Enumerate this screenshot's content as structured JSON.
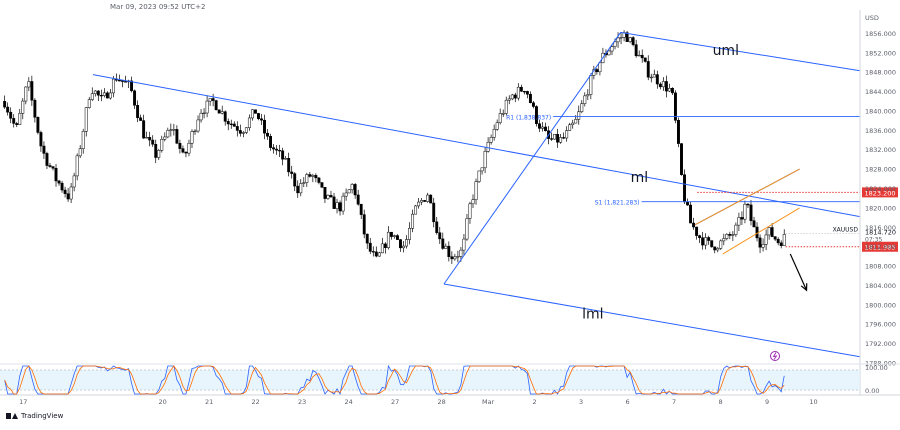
{
  "header": {
    "datetime": "Mar 09, 2023 09:52 UTC+2"
  },
  "brand": {
    "name": "TradingView"
  },
  "chart_data": {
    "type": "candlestick",
    "symbol": "XAUUSD",
    "currency": "USD",
    "last_price": "1814.720",
    "countdown": "07:35",
    "ylim": [
      1788,
      1860
    ],
    "y_ticks": [
      "1788.000",
      "1792.000",
      "1796.000",
      "1800.000",
      "1804.000",
      "1808.000",
      "1812.000",
      "1816.000",
      "1820.000",
      "1824.000",
      "1828.000",
      "1832.000",
      "1836.000",
      "1840.000",
      "1844.000",
      "1848.000",
      "1852.000",
      "1856.000"
    ],
    "x_ticks": [
      "17",
      "20",
      "21",
      "22",
      "23",
      "24",
      "27",
      "28",
      "Mar",
      "2",
      "3",
      "6",
      "7",
      "8",
      "9",
      "10"
    ],
    "x_tick_pos": [
      0.5,
      3.5,
      4.5,
      5.5,
      6.5,
      7.5,
      8.5,
      9.5,
      10.5,
      11.5,
      12.5,
      13.5,
      14.5,
      15.5,
      16.5,
      17.5
    ],
    "x_range": [
      0,
      18.5
    ],
    "price_path": [
      [
        0.1,
        1842
      ],
      [
        0.35,
        1836
      ],
      [
        0.6,
        1846
      ],
      [
        0.9,
        1832
      ],
      [
        1.2,
        1826
      ],
      [
        1.5,
        1822
      ],
      [
        1.75,
        1834
      ],
      [
        1.95,
        1845
      ],
      [
        2.2,
        1842
      ],
      [
        2.5,
        1847
      ],
      [
        2.8,
        1845
      ],
      [
        3.1,
        1835
      ],
      [
        3.35,
        1831
      ],
      [
        3.7,
        1837
      ],
      [
        3.95,
        1830
      ],
      [
        4.3,
        1840
      ],
      [
        4.6,
        1842
      ],
      [
        4.9,
        1838
      ],
      [
        5.2,
        1836
      ],
      [
        5.5,
        1840
      ],
      [
        5.8,
        1833
      ],
      [
        6.1,
        1830
      ],
      [
        6.4,
        1824
      ],
      [
        6.7,
        1827
      ],
      [
        7.0,
        1822
      ],
      [
        7.3,
        1820
      ],
      [
        7.6,
        1825
      ],
      [
        7.9,
        1812
      ],
      [
        8.1,
        1809
      ],
      [
        8.4,
        1815
      ],
      [
        8.7,
        1812
      ],
      [
        8.95,
        1820
      ],
      [
        9.2,
        1823
      ],
      [
        9.45,
        1814
      ],
      [
        9.7,
        1810
      ],
      [
        9.95,
        1811
      ],
      [
        10.1,
        1820
      ],
      [
        10.4,
        1830
      ],
      [
        10.7,
        1838
      ],
      [
        11.0,
        1843
      ],
      [
        11.3,
        1845
      ],
      [
        11.55,
        1838
      ],
      [
        11.8,
        1834
      ],
      [
        12.1,
        1834
      ],
      [
        12.4,
        1838
      ],
      [
        12.7,
        1846
      ],
      [
        12.95,
        1851
      ],
      [
        13.2,
        1854
      ],
      [
        13.45,
        1856
      ],
      [
        13.7,
        1852
      ],
      [
        13.95,
        1848
      ],
      [
        14.2,
        1846
      ],
      [
        14.45,
        1844
      ],
      [
        14.55,
        1836
      ],
      [
        14.7,
        1823
      ],
      [
        14.85,
        1817
      ],
      [
        15.05,
        1814
      ],
      [
        15.3,
        1812
      ],
      [
        15.55,
        1813
      ],
      [
        15.8,
        1815
      ],
      [
        15.95,
        1818
      ],
      [
        16.05,
        1821
      ],
      [
        16.2,
        1816
      ],
      [
        16.35,
        1813
      ],
      [
        16.55,
        1815
      ],
      [
        16.75,
        1813
      ],
      [
        16.9,
        1814
      ]
    ],
    "levels": [
      {
        "name": "R1",
        "label": "R1 (1,838.837)",
        "value": 1838.837
      },
      {
        "name": "S1",
        "label": "S1 (1,821.283)",
        "value": 1821.283
      }
    ],
    "price_badges": [
      {
        "value": "1823.200",
        "price": 1823.2
      },
      {
        "value": "1811.985",
        "price": 1811.985
      }
    ],
    "pitchfork": {
      "labels": {
        "upper": "uml",
        "median": "ml",
        "lower": "lml"
      },
      "upper": [
        [
          2.0,
          1847.5
        ],
        [
          18.5,
          1848.3
        ]
      ],
      "median": [
        [
          2.0,
          1847.5
        ],
        [
          18.5,
          1818.2
        ]
      ],
      "lower": [
        [
          9.55,
          1804.3
        ],
        [
          18.5,
          1789.3
        ]
      ],
      "handle": [
        [
          9.55,
          1804.3
        ],
        [
          13.35,
          1856.2
        ]
      ],
      "upper_start": [
        13.35,
        1856.2
      ]
    },
    "channel": {
      "upper": [
        [
          14.95,
          1816.5
        ],
        [
          17.2,
          1828.0
        ]
      ],
      "lower": [
        [
          15.55,
          1810.5
        ],
        [
          17.2,
          1820.0
        ]
      ]
    },
    "arrow": {
      "from": [
        17.0,
        1810.5
      ],
      "to": [
        17.35,
        1803.0
      ]
    },
    "oscillator": {
      "y_ticks": [
        "100.00",
        "0.00"
      ]
    }
  }
}
